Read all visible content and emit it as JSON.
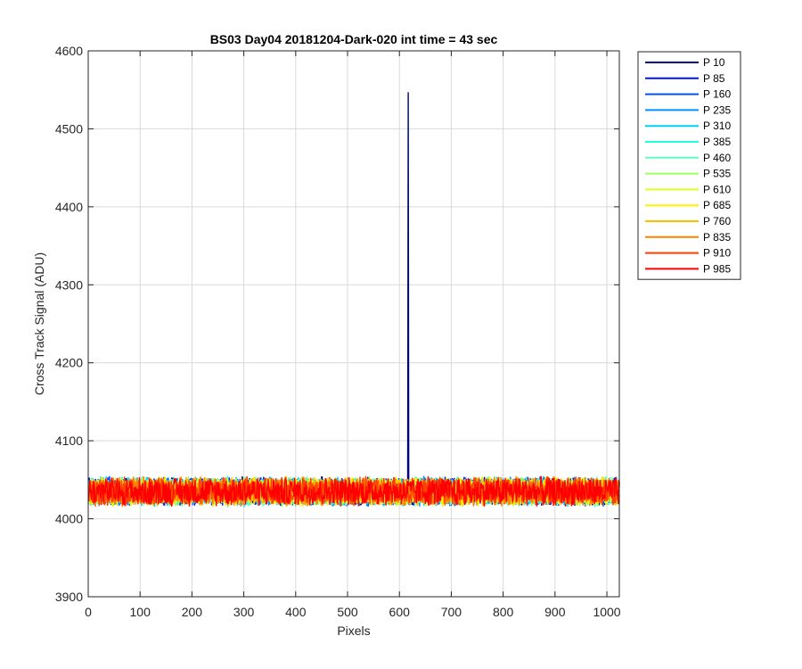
{
  "chart_data": {
    "type": "line",
    "title": "BS03 Day04 20181204-Dark-020 int time = 43 sec",
    "xlabel": "Pixels",
    "ylabel": "Cross Track Signal (ADU)",
    "xlim": [
      0,
      1024
    ],
    "ylim": [
      3900,
      4600
    ],
    "xticks": [
      0,
      100,
      200,
      300,
      400,
      500,
      600,
      700,
      800,
      900,
      1000
    ],
    "yticks": [
      3900,
      4000,
      4100,
      4200,
      4300,
      4400,
      4500,
      4600
    ],
    "grid": true,
    "legend_position": "outside-top-right",
    "baseline_mean": 4035,
    "noise_amplitude": 20,
    "series": [
      {
        "name": "P 10",
        "color": "#00008F",
        "spike": {
          "x": 617,
          "y": 4547
        }
      },
      {
        "name": "P 85",
        "color": "#0010FF"
      },
      {
        "name": "P 160",
        "color": "#0050FF"
      },
      {
        "name": "P 235",
        "color": "#0090FF"
      },
      {
        "name": "P 310",
        "color": "#00CFFF"
      },
      {
        "name": "P 385",
        "color": "#20FFDF"
      },
      {
        "name": "P 460",
        "color": "#60FFBF"
      },
      {
        "name": "P 535",
        "color": "#9FFF60"
      },
      {
        "name": "P 610",
        "color": "#DFFF20"
      },
      {
        "name": "P 685",
        "color": "#FFEF00"
      },
      {
        "name": "P 760",
        "color": "#FFBF00"
      },
      {
        "name": "P 835",
        "color": "#FF8000"
      },
      {
        "name": "P 910",
        "color": "#FF4000"
      },
      {
        "name": "P 985",
        "color": "#FF0000"
      }
    ]
  }
}
